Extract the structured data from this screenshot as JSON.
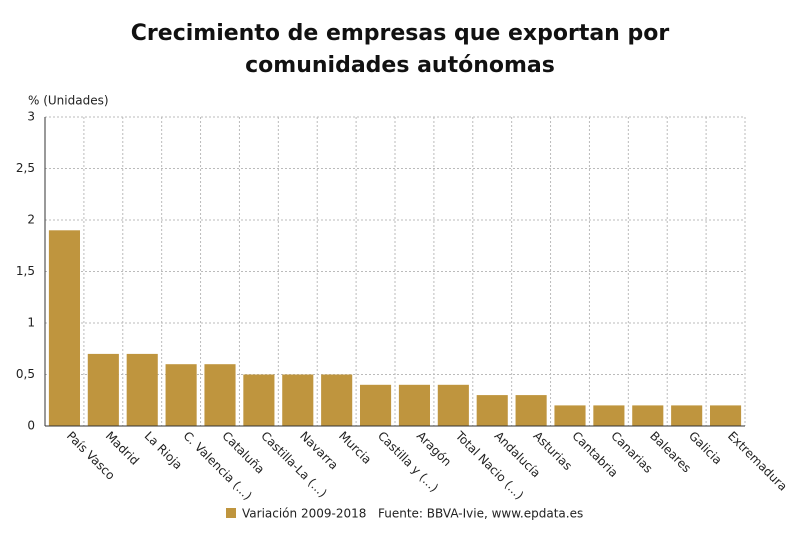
{
  "chart_data": {
    "type": "bar",
    "title": "Crecimiento de empresas que exportan por comunidades autónomas",
    "y_label": "% (Unidades)",
    "categories": [
      "País Vasco",
      "Madrid",
      "La Rioja",
      "C. Valencia (...)",
      "Cataluña",
      "Castilla-La (...)",
      "Navarra",
      "Murcia",
      "Castilla y (...)",
      "Aragón",
      "Total Nacio (...)",
      "Andalucía",
      "Asturias",
      "Cantabria",
      "Canarias",
      "Baleares",
      "Galicia",
      "Extremadura"
    ],
    "series": [
      {
        "name": "Variación 2009-2018",
        "color": "#bf953e",
        "values": [
          1.9,
          0.7,
          0.7,
          0.6,
          0.6,
          0.5,
          0.5,
          0.5,
          0.4,
          0.4,
          0.4,
          0.3,
          0.3,
          0.2,
          0.2,
          0.2,
          0.2,
          0.2
        ]
      }
    ],
    "ylim": [
      0,
      3
    ],
    "yticks": [
      0,
      {
        "value": 0.5,
        "label": "0,5"
      },
      1,
      {
        "value": 1.5,
        "label": "1,5"
      },
      2,
      {
        "value": 2.5,
        "label": "2,5"
      },
      3
    ],
    "grid": true,
    "source": "Fuente: BBVA-Ivie, www.epdata.es"
  }
}
